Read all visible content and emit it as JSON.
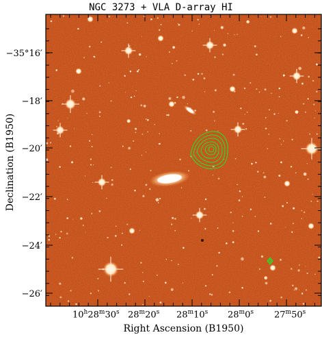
{
  "title": "NGC 3273 + VLA D-array HI",
  "xlabel": "Right Ascension (B1950)",
  "ylabel": "Declination (B1950)",
  "yticks": [
    "−35°16′",
    "−18′",
    "−20′",
    "−22′",
    "−24′",
    "−26′"
  ],
  "xticks": [
    {
      "h": "10",
      "hu": "h",
      "m": "28",
      "mu": "m",
      "s": "30",
      "su": "s"
    },
    {
      "h": "",
      "hu": "",
      "m": "28",
      "mu": "m",
      "s": "20",
      "su": "s"
    },
    {
      "h": "",
      "hu": "",
      "m": "28",
      "mu": "m",
      "s": "10",
      "su": "s"
    },
    {
      "h": "",
      "hu": "",
      "m": "28",
      "mu": "m",
      "s": "0",
      "su": "s"
    },
    {
      "h": "",
      "hu": "",
      "m": "27",
      "mu": "m",
      "s": "50",
      "su": "s"
    }
  ],
  "colors": {
    "sky": "#c24a12",
    "contour": "#22e02a",
    "frame": "#000000"
  }
}
